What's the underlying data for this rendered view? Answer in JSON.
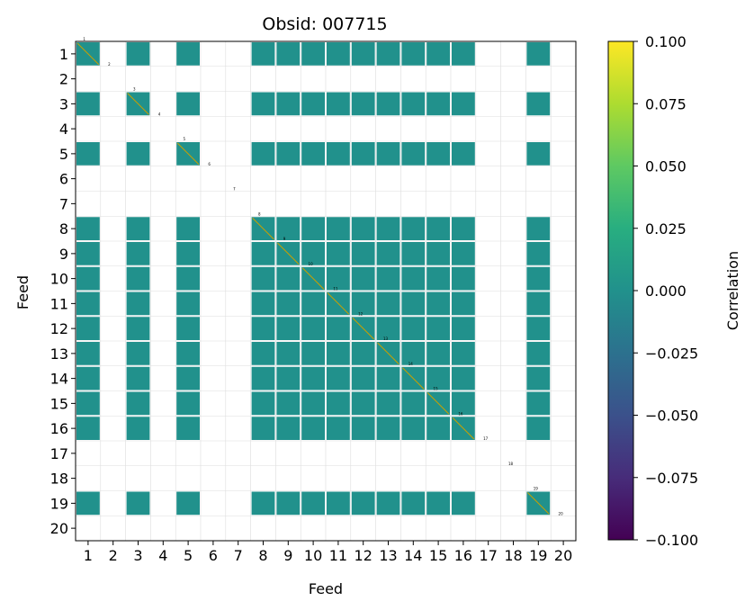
{
  "chart_data": {
    "type": "heatmap",
    "title": "Obsid: 007715",
    "xlabel": "Feed",
    "ylabel": "Feed",
    "x_ticks": [
      "1",
      "2",
      "3",
      "4",
      "5",
      "6",
      "7",
      "8",
      "9",
      "10",
      "11",
      "12",
      "13",
      "14",
      "15",
      "16",
      "17",
      "18",
      "19",
      "20"
    ],
    "y_ticks": [
      "1",
      "2",
      "3",
      "4",
      "5",
      "6",
      "7",
      "8",
      "9",
      "10",
      "11",
      "12",
      "13",
      "14",
      "15",
      "16",
      "17",
      "18",
      "19",
      "20"
    ],
    "colorbar": {
      "label": "Correlation",
      "vmin": -0.1,
      "vmax": 0.1,
      "ticks": [
        "0.100",
        "0.075",
        "0.050",
        "0.025",
        "0.000",
        "−0.025",
        "−0.050",
        "−0.075",
        "−0.100"
      ],
      "colormap": "viridis"
    },
    "grid": true,
    "cell_fill_color": "#21918c",
    "diagonal_line_color": "#c8a000",
    "active_feeds": [
      1,
      3,
      5,
      8,
      9,
      10,
      11,
      12,
      13,
      14,
      15,
      16,
      19
    ],
    "inactive_feeds": [
      2,
      4,
      6,
      7,
      17,
      18,
      20
    ],
    "approx_value_active_pairs": 0.0
  }
}
